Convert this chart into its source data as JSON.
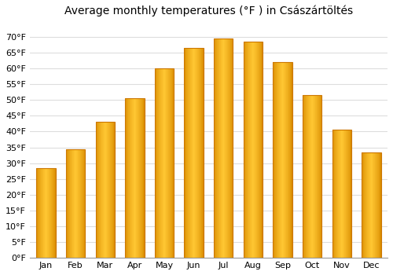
{
  "title": "Average monthly temperatures (°F ) in Császártöltés",
  "months": [
    "Jan",
    "Feb",
    "Mar",
    "Apr",
    "May",
    "Jun",
    "Jul",
    "Aug",
    "Sep",
    "Oct",
    "Nov",
    "Dec"
  ],
  "values": [
    28.5,
    34.5,
    43.0,
    50.5,
    60.0,
    66.5,
    69.5,
    68.5,
    62.0,
    51.5,
    40.5,
    33.5
  ],
  "bar_color_main": "#FFA500",
  "bar_color_edge": "#CC7700",
  "ylim": [
    0,
    75
  ],
  "yticks": [
    0,
    5,
    10,
    15,
    20,
    25,
    30,
    35,
    40,
    45,
    50,
    55,
    60,
    65,
    70
  ],
  "ytick_labels": [
    "0°F",
    "5°F",
    "10°F",
    "15°F",
    "20°F",
    "25°F",
    "30°F",
    "35°F",
    "40°F",
    "45°F",
    "50°F",
    "55°F",
    "60°F",
    "65°F",
    "70°F"
  ],
  "background_color": "#ffffff",
  "grid_color": "#dddddd",
  "title_fontsize": 10,
  "tick_fontsize": 8,
  "bar_width": 0.65
}
